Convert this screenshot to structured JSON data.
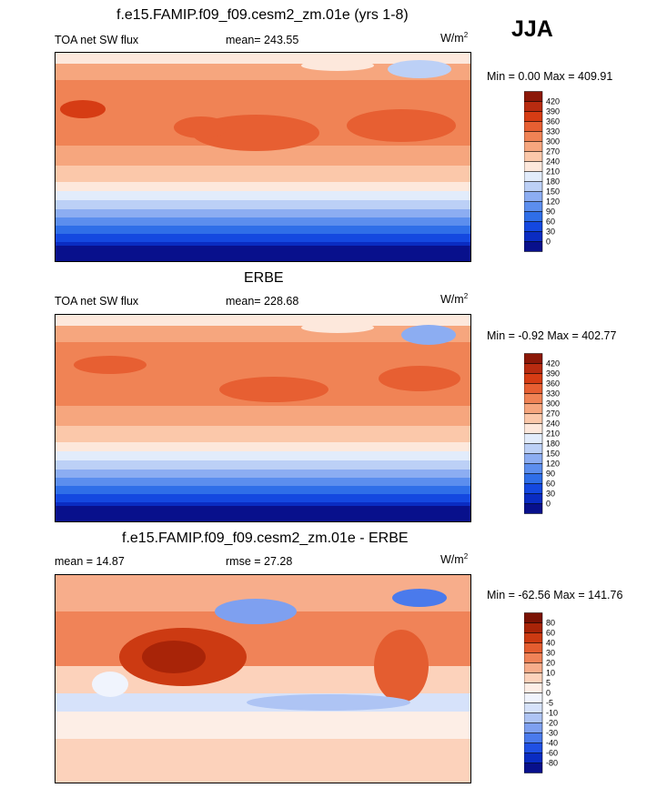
{
  "season": "JJA",
  "colorscales": {
    "abs": [
      "#08108c",
      "#0a2cc2",
      "#1448e0",
      "#2f6ee8",
      "#5c8eee",
      "#8cadf2",
      "#bcd0f6",
      "#e2ecfb",
      "#fde8dc",
      "#fbc8aa",
      "#f6a67e",
      "#f08355",
      "#e75f32",
      "#d63c14",
      "#b82b10",
      "#8c1808"
    ],
    "diff": [
      "#08108c",
      "#0a2cc2",
      "#2050e4",
      "#4a7aec",
      "#7ea0f0",
      "#aec4f4",
      "#d6e2fa",
      "#f0f4fd",
      "#fdeee6",
      "#fcd2bb",
      "#f7ad8b",
      "#f08358",
      "#e45d30",
      "#cc3a12",
      "#a82408",
      "#7a1204"
    ]
  },
  "panels": [
    {
      "id": "model",
      "title": "f.e15.FAMIP.f09_f09.cesm2_zm.01e (yrs 1-8)",
      "left_label": "TOA net SW flux",
      "center_label": "mean= 243.55",
      "units": "W/m",
      "units_exp": "2",
      "minmax": "Min =   0.00 Max = 409.91",
      "scale": "abs",
      "ticks": [
        "420",
        "390",
        "360",
        "330",
        "300",
        "270",
        "240",
        "210",
        "180",
        "150",
        "120",
        "90",
        "60",
        "30",
        "0"
      ]
    },
    {
      "id": "obs",
      "title": "ERBE",
      "left_label": "TOA net SW flux",
      "center_label": "mean= 228.68",
      "units": "W/m",
      "units_exp": "2",
      "minmax": "Min =  -0.92 Max = 402.77",
      "scale": "abs",
      "ticks": [
        "420",
        "390",
        "360",
        "330",
        "300",
        "270",
        "240",
        "210",
        "180",
        "150",
        "120",
        "90",
        "60",
        "30",
        "0"
      ]
    },
    {
      "id": "diff",
      "title": "f.e15.FAMIP.f09_f09.cesm2_zm.01e - ERBE",
      "left_label": "mean =  14.87",
      "center_label": "rmse =  27.28",
      "units": "W/m",
      "units_exp": "2",
      "minmax": "Min = -62.56 Max = 141.76",
      "scale": "diff",
      "ticks": [
        "80",
        "60",
        "40",
        "30",
        "20",
        "10",
        "5",
        "0",
        "-5",
        "-10",
        "-20",
        "-30",
        "-40",
        "-60",
        "-80"
      ]
    }
  ]
}
